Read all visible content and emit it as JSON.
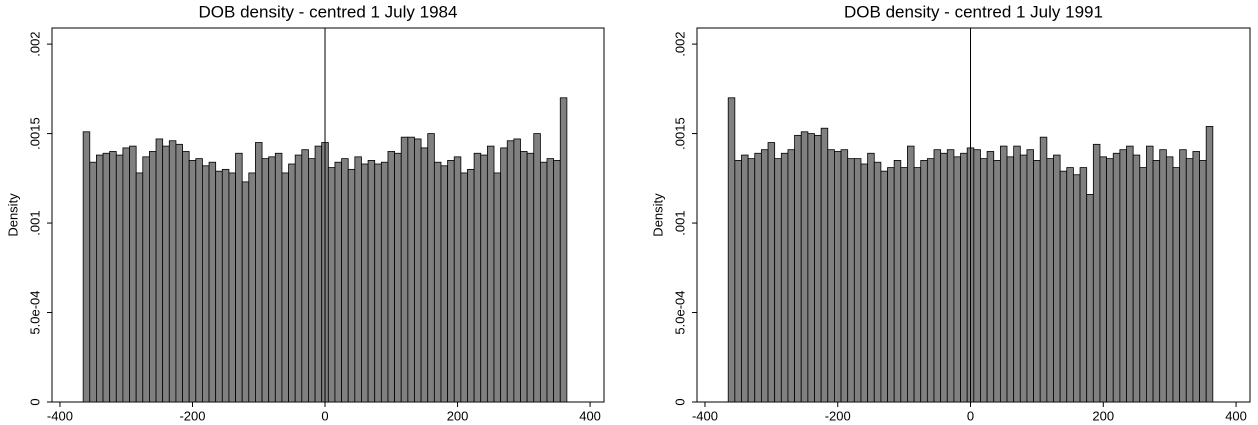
{
  "chart_data": [
    {
      "type": "histogram",
      "title": "DOB density - centred 1 July 1984",
      "y_label": "Density",
      "bins": [
        -365,
        -355,
        -345,
        -335,
        -325,
        -315,
        -305,
        -295,
        -285,
        -275,
        -265,
        -255,
        -245,
        -235,
        -225,
        -215,
        -205,
        -195,
        -185,
        -175,
        -165,
        -155,
        -145,
        -135,
        -125,
        -115,
        -105,
        -95,
        -85,
        -75,
        -65,
        -55,
        -45,
        -35,
        -25,
        -15,
        -5,
        5,
        15,
        25,
        35,
        45,
        55,
        65,
        75,
        85,
        95,
        105,
        115,
        125,
        135,
        145,
        155,
        165,
        175,
        185,
        195,
        205,
        215,
        225,
        235,
        245,
        255,
        265,
        275,
        285,
        295,
        305,
        315,
        325,
        335,
        345,
        355,
        365
      ],
      "values": [
        0.00151,
        0.00134,
        0.00138,
        0.00139,
        0.0014,
        0.00138,
        0.00142,
        0.00143,
        0.00128,
        0.00137,
        0.0014,
        0.00147,
        0.00143,
        0.00146,
        0.00144,
        0.0014,
        0.00135,
        0.00136,
        0.00132,
        0.00134,
        0.00129,
        0.0013,
        0.00128,
        0.00139,
        0.00123,
        0.00128,
        0.00145,
        0.00136,
        0.00137,
        0.00139,
        0.00128,
        0.00133,
        0.00138,
        0.00141,
        0.00136,
        0.00143,
        0.00145,
        0.00131,
        0.00134,
        0.00136,
        0.0013,
        0.00137,
        0.00133,
        0.00135,
        0.00133,
        0.00134,
        0.0014,
        0.00139,
        0.00148,
        0.00148,
        0.00147,
        0.00142,
        0.0015,
        0.00134,
        0.00132,
        0.00135,
        0.00137,
        0.00128,
        0.0013,
        0.00139,
        0.00138,
        0.00143,
        0.00128,
        0.00142,
        0.00146,
        0.00147,
        0.0014,
        0.00139,
        0.0015,
        0.00134,
        0.00136,
        0.00135,
        0.0017
      ],
      "color": "#808080",
      "xline": 0,
      "xlim": [
        -412,
        421
      ],
      "ylim": [
        0,
        0.00209
      ],
      "xticks": [
        -400,
        -200,
        0,
        200,
        400
      ],
      "yticks": [
        0,
        {
          "value": 0.0005,
          "label": "5.0e-04"
        },
        {
          "value": 0.001,
          "label": ".001"
        },
        {
          "value": 0.0015,
          "label": ".0015"
        },
        {
          "value": 0.002,
          "label": ".002"
        }
      ]
    },
    {
      "type": "histogram",
      "title": "DOB density - centred 1 July 1991",
      "y_label": "Density",
      "bins": [
        -365,
        -355,
        -345,
        -335,
        -325,
        -315,
        -305,
        -295,
        -285,
        -275,
        -265,
        -255,
        -245,
        -235,
        -225,
        -215,
        -205,
        -195,
        -185,
        -175,
        -165,
        -155,
        -145,
        -135,
        -125,
        -115,
        -105,
        -95,
        -85,
        -75,
        -65,
        -55,
        -45,
        -35,
        -25,
        -15,
        -5,
        5,
        15,
        25,
        35,
        45,
        55,
        65,
        75,
        85,
        95,
        105,
        115,
        125,
        135,
        145,
        155,
        165,
        175,
        185,
        195,
        205,
        215,
        225,
        235,
        245,
        255,
        265,
        275,
        285,
        295,
        305,
        315,
        325,
        335,
        345,
        355,
        365
      ],
      "values": [
        0.0017,
        0.00135,
        0.00138,
        0.00136,
        0.00139,
        0.00141,
        0.00145,
        0.00136,
        0.00139,
        0.00141,
        0.00149,
        0.00151,
        0.0015,
        0.00149,
        0.00153,
        0.00141,
        0.0014,
        0.00141,
        0.00136,
        0.00136,
        0.00133,
        0.00139,
        0.00134,
        0.00129,
        0.00131,
        0.00135,
        0.00131,
        0.00143,
        0.00131,
        0.00135,
        0.00136,
        0.00141,
        0.00139,
        0.00141,
        0.00137,
        0.00139,
        0.00142,
        0.00141,
        0.00136,
        0.0014,
        0.00135,
        0.00143,
        0.00137,
        0.00143,
        0.00138,
        0.00141,
        0.00135,
        0.00148,
        0.00136,
        0.00138,
        0.00129,
        0.00131,
        0.00127,
        0.00131,
        0.00116,
        0.00144,
        0.00137,
        0.00136,
        0.00139,
        0.00141,
        0.00143,
        0.00138,
        0.00131,
        0.00143,
        0.00135,
        0.00141,
        0.00137,
        0.00131,
        0.00141,
        0.00136,
        0.0014,
        0.00135,
        0.00154
      ],
      "color": "#808080",
      "xline": 0,
      "xlim": [
        -412,
        421
      ],
      "ylim": [
        0,
        0.00209
      ],
      "xticks": [
        -400,
        -200,
        0,
        200,
        400
      ],
      "yticks": [
        0,
        {
          "value": 0.0005,
          "label": "5.0e-04"
        },
        {
          "value": 0.001,
          "label": ".001"
        },
        {
          "value": 0.0015,
          "label": ".0015"
        },
        {
          "value": 0.002,
          "label": ".002"
        }
      ]
    }
  ]
}
